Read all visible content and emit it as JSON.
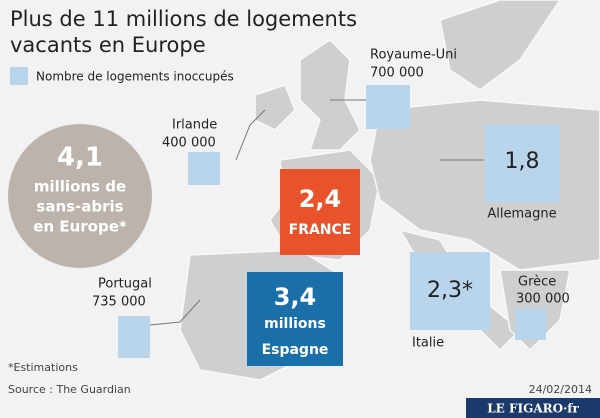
{
  "title": [
    "Plus de 11 millions de logements",
    "vacants en Europe"
  ],
  "legend": "Nombre de logements inoccupés",
  "homeless": {
    "value": "4,1",
    "lines": [
      "millions de",
      "sans-abris",
      "en Europe*"
    ]
  },
  "countries": [
    {
      "name": "Royaume-Uni",
      "value": "700 000"
    },
    {
      "name": "Irlande",
      "value": "400 000"
    },
    {
      "name": "Allemagne",
      "value": "1,8"
    },
    {
      "name": "FRANCE",
      "value": "2,4"
    },
    {
      "name": "Espagne",
      "value": "3,4",
      "unit": "millions"
    },
    {
      "name": "Portugal",
      "value": "735 000"
    },
    {
      "name": "Italie",
      "value": "2,3*"
    },
    {
      "name": "Grèce",
      "value": "300 000"
    }
  ],
  "note": "*Estimations",
  "source": "Source : The Guardian",
  "date": "24/02/2014",
  "brand": "LE FIGARO·fr"
}
